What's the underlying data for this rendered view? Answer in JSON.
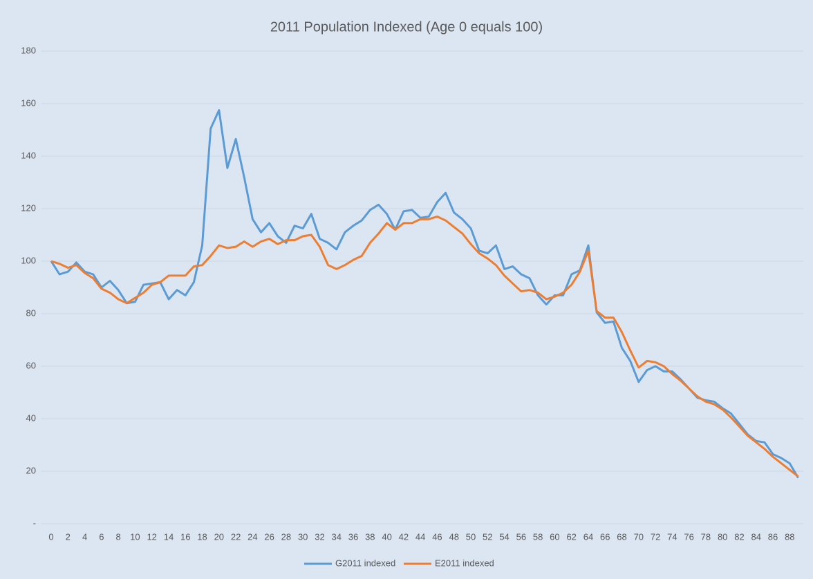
{
  "chart_data": {
    "type": "line",
    "title": "2011 Population Indexed (Age 0 equals 100)",
    "categories": [
      "0",
      null,
      "2",
      null,
      "4",
      null,
      "6",
      null,
      "8",
      null,
      "10",
      null,
      "12",
      null,
      "14",
      null,
      "16",
      null,
      "18",
      null,
      "20",
      null,
      "22",
      null,
      "24",
      null,
      "26",
      null,
      "28",
      null,
      "30",
      null,
      "32",
      null,
      "34",
      null,
      "36",
      null,
      "38",
      null,
      "40",
      null,
      "42",
      null,
      "44",
      null,
      "46",
      null,
      "48",
      null,
      "50",
      null,
      "52",
      null,
      "54",
      null,
      "56",
      null,
      "58",
      null,
      "60",
      null,
      "62",
      null,
      "64",
      null,
      "66",
      null,
      "68",
      null,
      "70",
      null,
      "72",
      null,
      "74",
      null,
      "76",
      null,
      "78",
      null,
      "80",
      null,
      "82",
      null,
      "84",
      null,
      "86",
      null,
      "88",
      null
    ],
    "series": [
      {
        "name": "G2011 indexed",
        "color": "#5b9bd5",
        "values": [
          100,
          95,
          96,
          99.5,
          96,
          95,
          90,
          92.5,
          89,
          84,
          84.5,
          91,
          91.5,
          92,
          85.5,
          89,
          87,
          92,
          106,
          150.5,
          157.5,
          135.5,
          146.5,
          132,
          116,
          111,
          114.5,
          109.5,
          107,
          113.5,
          112.5,
          118,
          108.5,
          107,
          104.5,
          111,
          113.5,
          115.5,
          119.5,
          121.5,
          118,
          112,
          119,
          119.5,
          116.5,
          117,
          122.5,
          126,
          118.5,
          116,
          112.5,
          104,
          103,
          106,
          97,
          98,
          95,
          93.5,
          87,
          83.5,
          87,
          87,
          95,
          96.5,
          106,
          80.5,
          76.5,
          77,
          67,
          62,
          54,
          58.5,
          60,
          58,
          58,
          55,
          51.5,
          48,
          47,
          46.5,
          44,
          42,
          38,
          34,
          31.5,
          31,
          26.5,
          25,
          23,
          17.5
        ]
      },
      {
        "name": "E2011 indexed",
        "color": "#ed7d31",
        "values": [
          100,
          99,
          97.5,
          98.5,
          95.5,
          93.5,
          89.5,
          88,
          85.5,
          84,
          86,
          88,
          91,
          92,
          94.5,
          94.5,
          94.5,
          98,
          98.5,
          102,
          106,
          105,
          105.5,
          107.5,
          105.5,
          107.5,
          108.5,
          106.5,
          108,
          108,
          109.5,
          110,
          105.5,
          98.5,
          97,
          98.5,
          100.5,
          102,
          107,
          110.5,
          114.5,
          112,
          114.5,
          114.5,
          116,
          116,
          117,
          115.5,
          113,
          110.5,
          106.5,
          103,
          101,
          98.5,
          94.5,
          91.5,
          88.5,
          89,
          88,
          85.5,
          86.5,
          88,
          91,
          96,
          104,
          81,
          78.5,
          78.5,
          73,
          66,
          59.5,
          62,
          61.5,
          60,
          57,
          54.5,
          51.5,
          48.5,
          46.5,
          45.5,
          43.5,
          40.5,
          37,
          33.5,
          31,
          28.5,
          25.5,
          23,
          20.5,
          18
        ]
      }
    ],
    "ylim": [
      0,
      180
    ],
    "yticks": [
      {
        "value": 0,
        "label": "-"
      },
      20,
      40,
      60,
      80,
      100,
      120,
      140,
      160,
      180
    ],
    "grid": true,
    "legend": "bottom"
  }
}
